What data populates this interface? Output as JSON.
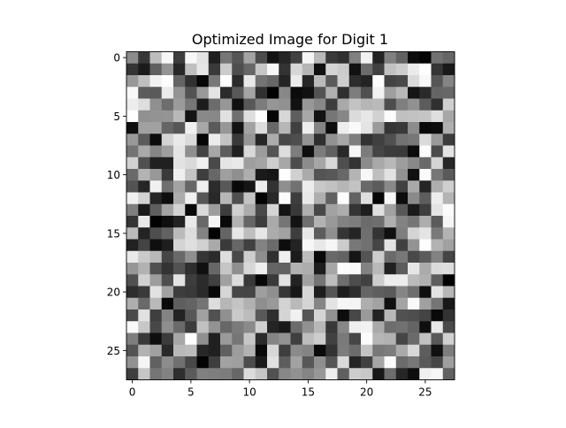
{
  "chart_data": {
    "type": "heatmap",
    "title": "Optimized Image for Digit 1",
    "xlabel": "",
    "ylabel": "",
    "colormap": "gray",
    "rows": 28,
    "cols": 28,
    "xlim": [
      -0.5,
      27.5
    ],
    "ylim": [
      27.5,
      -0.5
    ],
    "x_ticks": [
      0,
      5,
      10,
      15,
      20,
      25
    ],
    "y_ticks": [
      0,
      5,
      10,
      15,
      20,
      25
    ],
    "grid": false,
    "legend": "none",
    "value_range": [
      0,
      255
    ],
    "values": [
      [
        140,
        56,
        189,
        247,
        61,
        247,
        227,
        31,
        118,
        86,
        164,
        76,
        19,
        37,
        66,
        245,
        185,
        58,
        48,
        128,
        241,
        36,
        128,
        98,
        12,
        5,
        113,
        102
      ],
      [
        52,
        27,
        96,
        148,
        39,
        191,
        230,
        58,
        204,
        78,
        103,
        198,
        247,
        51,
        215,
        182,
        17,
        212,
        203,
        17,
        107,
        65,
        193,
        205,
        235,
        254,
        53,
        25
      ],
      [
        152,
        191,
        242,
        253,
        100,
        49,
        7,
        120,
        254,
        43,
        233,
        115,
        103,
        36,
        235,
        38,
        186,
        91,
        206,
        44,
        36,
        252,
        67,
        73,
        218,
        247,
        86,
        132
      ],
      [
        249,
        92,
        90,
        234,
        148,
        83,
        152,
        228,
        43,
        88,
        164,
        48,
        3,
        135,
        11,
        17,
        83,
        176,
        47,
        125,
        80,
        242,
        158,
        183,
        20,
        42,
        101,
        103
      ],
      [
        237,
        222,
        144,
        109,
        155,
        119,
        28,
        108,
        151,
        16,
        88,
        124,
        150,
        145,
        18,
        152,
        136,
        61,
        169,
        195,
        182,
        186,
        77,
        127,
        145,
        92,
        47,
        207
      ],
      [
        254,
        145,
        147,
        148,
        185,
        19,
        137,
        136,
        225,
        111,
        222,
        253,
        5,
        215,
        94,
        168,
        19,
        118,
        134,
        219,
        231,
        209,
        251,
        192,
        194,
        197,
        223,
        167
      ],
      [
        14,
        161,
        161,
        101,
        86,
        240,
        167,
        90,
        151,
        18,
        162,
        221,
        103,
        182,
        64,
        238,
        132,
        13,
        238,
        250,
        228,
        155,
        53,
        57,
        140,
        8,
        12,
        175
      ],
      [
        153,
        90,
        11,
        212,
        233,
        219,
        5,
        235,
        195,
        57,
        150,
        38,
        172,
        71,
        78,
        148,
        47,
        146,
        168,
        126,
        50,
        64,
        80,
        114,
        119,
        218,
        154,
        60
      ],
      [
        116,
        169,
        134,
        159,
        228,
        143,
        66,
        167,
        93,
        32,
        217,
        156,
        84,
        221,
        125,
        14,
        123,
        96,
        40,
        246,
        124,
        69,
        59,
        58,
        11,
        252,
        75,
        227
      ],
      [
        209,
        80,
        32,
        32,
        226,
        218,
        240,
        73,
        228,
        233,
        158,
        164,
        206,
        167,
        76,
        140,
        166,
        216,
        78,
        51,
        139,
        169,
        184,
        157,
        137,
        105,
        213,
        39
      ],
      [
        106,
        179,
        152,
        58,
        239,
        196,
        62,
        103,
        159,
        143,
        174,
        27,
        22,
        253,
        208,
        171,
        84,
        88,
        104,
        180,
        247,
        191,
        226,
        146,
        17,
        251,
        119,
        90
      ],
      [
        83,
        38,
        241,
        112,
        163,
        102,
        239,
        44,
        88,
        9,
        21,
        237,
        50,
        143,
        114,
        236,
        200,
        193,
        182,
        195,
        105,
        91,
        137,
        65,
        169,
        37,
        174,
        207
      ],
      [
        240,
        210,
        37,
        14,
        172,
        240,
        87,
        41,
        184,
        79,
        195,
        2,
        40,
        252,
        61,
        233,
        175,
        97,
        253,
        98,
        223,
        6,
        246,
        13,
        138,
        93,
        237,
        180
      ],
      [
        127,
        26,
        94,
        163,
        211,
        10,
        218,
        158,
        62,
        207,
        172,
        73,
        212,
        20,
        57,
        175,
        72,
        162,
        173,
        53,
        29,
        224,
        161,
        88,
        27,
        63,
        228,
        252
      ],
      [
        52,
        233,
        1,
        15,
        34,
        233,
        103,
        245,
        9,
        179,
        102,
        61,
        170,
        117,
        19,
        110,
        178,
        153,
        130,
        125,
        107,
        111,
        175,
        131,
        118,
        173,
        91,
        246
      ],
      [
        187,
        35,
        78,
        98,
        186,
        221,
        131,
        4,
        101,
        231,
        190,
        230,
        172,
        162,
        62,
        231,
        92,
        144,
        53,
        36,
        111,
        51,
        16,
        126,
        212,
        228,
        121,
        179
      ],
      [
        33,
        68,
        15,
        30,
        212,
        223,
        208,
        170,
        58,
        103,
        64,
        131,
        107,
        13,
        35,
        246,
        232,
        246,
        204,
        120,
        113,
        69,
        226,
        64,
        147,
        253,
        178,
        161
      ],
      [
        233,
        202,
        184,
        70,
        105,
        143,
        54,
        43,
        221,
        72,
        206,
        142,
        48,
        239,
        28,
        188,
        8,
        104,
        99,
        21,
        84,
        204,
        107,
        120,
        73,
        92,
        130,
        69
      ],
      [
        150,
        178,
        80,
        51,
        82,
        46,
        16,
        103,
        197,
        143,
        215,
        239,
        100,
        98,
        178,
        173,
        28,
        166,
        252,
        250,
        130,
        185,
        33,
        92,
        230,
        171,
        219,
        221
      ],
      [
        80,
        209,
        157,
        78,
        227,
        61,
        43,
        64,
        160,
        221,
        56,
        7,
        58,
        226,
        35,
        161,
        116,
        189,
        110,
        77,
        65,
        205,
        237,
        237,
        187,
        176,
        93,
        3
      ],
      [
        45,
        58,
        226,
        161,
        61,
        57,
        42,
        7,
        214,
        70,
        68,
        158,
        143,
        55,
        22,
        214,
        29,
        85,
        29,
        45,
        101,
        94,
        90,
        133,
        110,
        15,
        227,
        183
      ],
      [
        174,
        106,
        185,
        9,
        94,
        99,
        116,
        220,
        182,
        196,
        177,
        142,
        153,
        211,
        185,
        212,
        133,
        227,
        246,
        244,
        174,
        162,
        16,
        165,
        249,
        160,
        117,
        24
      ],
      [
        74,
        225,
        63,
        131,
        35,
        87,
        161,
        81,
        144,
        202,
        188,
        89,
        47,
        213,
        241,
        86,
        213,
        146,
        12,
        71,
        153,
        34,
        184,
        81,
        78,
        68,
        9,
        50
      ],
      [
        249,
        199,
        72,
        142,
        106,
        59,
        193,
        147,
        103,
        123,
        138,
        208,
        36,
        25,
        108,
        145,
        183,
        56,
        135,
        239,
        242,
        170,
        109,
        113,
        100,
        15,
        231,
        74
      ],
      [
        126,
        57,
        14,
        60,
        167,
        253,
        144,
        32,
        154,
        118,
        199,
        43,
        133,
        146,
        63,
        189,
        205,
        65,
        122,
        70,
        252,
        182,
        178,
        69,
        107,
        193,
        88,
        209
      ],
      [
        83,
        178,
        161,
        41,
        184,
        188,
        39,
        32,
        95,
        156,
        178,
        9,
        215,
        62,
        139,
        132,
        10,
        51,
        124,
        108,
        195,
        120,
        126,
        170,
        216,
        93,
        16,
        125
      ],
      [
        145,
        245,
        97,
        140,
        112,
        72,
        4,
        62,
        162,
        159,
        76,
        27,
        225,
        93,
        162,
        87,
        143,
        85,
        218,
        37,
        64,
        166,
        251,
        107,
        119,
        89,
        70,
        158
      ],
      [
        62,
        198,
        117,
        130,
        46,
        91,
        128,
        126,
        124,
        103,
        219,
        198,
        81,
        135,
        145,
        132,
        151,
        238,
        96,
        205,
        199,
        24,
        108,
        38,
        14,
        240,
        246,
        97
      ]
    ]
  }
}
